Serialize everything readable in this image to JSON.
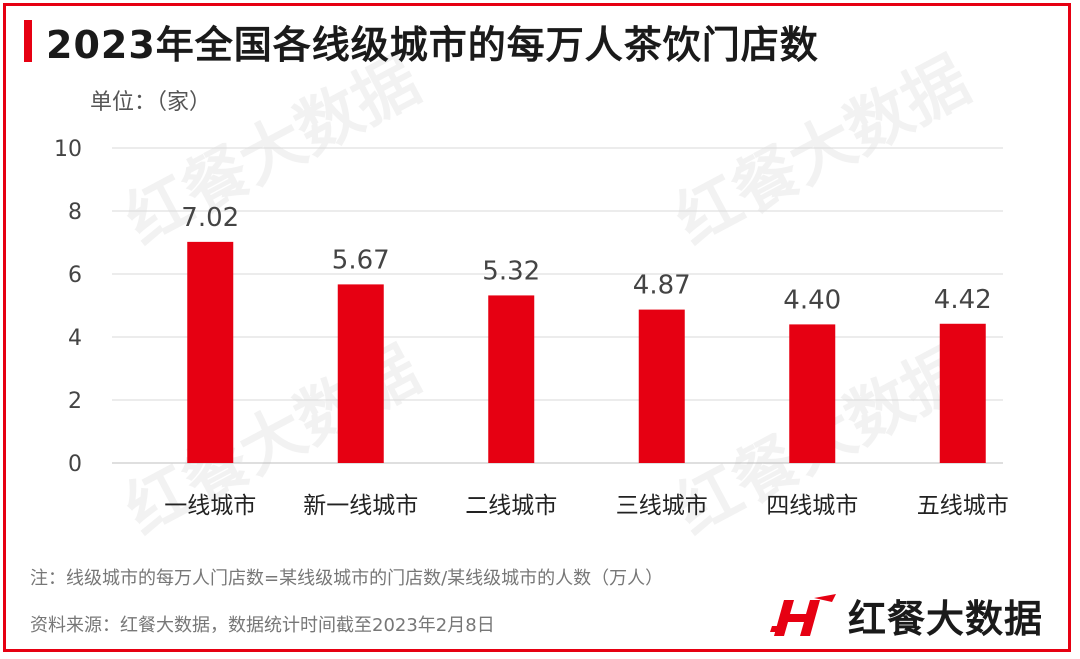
{
  "title": "2023年全国各线级城市的每万人茶饮门店数",
  "unit_label": "单位：（家）",
  "watermark_text": "红餐大数据",
  "note": "注：线级城市的每万人门店数=某线级城市的门店数/某线级城市的人数（万人）",
  "source": "资料来源：红餐大数据，数据统计时间截至2023年2月8日",
  "brand": {
    "name": "红餐大数据",
    "icon": "hongcan-logo-icon"
  },
  "colors": {
    "bar": "#e60012",
    "frame": "#e60012",
    "grid": "#d9d9d9"
  },
  "chart_data": {
    "type": "bar",
    "categories": [
      "一线城市",
      "新一线城市",
      "二线城市",
      "三线城市",
      "四线城市",
      "五线城市"
    ],
    "values": [
      7.02,
      5.67,
      5.32,
      4.87,
      4.4,
      4.42
    ],
    "value_labels": [
      "7.02",
      "5.67",
      "5.32",
      "4.87",
      "4.40",
      "4.42"
    ],
    "title": "2023年全国各线级城市的每万人茶饮门店数",
    "xlabel": "",
    "ylabel": "单位：（家）",
    "ylim": [
      0,
      10
    ],
    "yticks": [
      0,
      2,
      4,
      6,
      8,
      10
    ],
    "grid": true,
    "legend": "none"
  }
}
